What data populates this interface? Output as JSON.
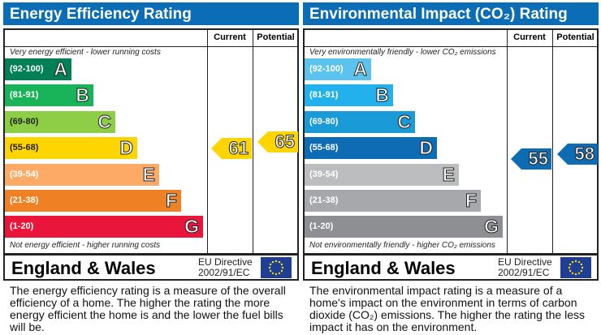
{
  "chart_data": [
    {
      "type": "bar",
      "title": "Energy Efficiency Rating",
      "columns": [
        "Current",
        "Potential"
      ],
      "top_note": "Very energy efficient - lower running costs",
      "bottom_note": "Not energy efficient - higher running costs",
      "bands": [
        {
          "range": "(92-100)",
          "letter": "A",
          "color": "#008054"
        },
        {
          "range": "(81-91)",
          "letter": "B",
          "color": "#19b459"
        },
        {
          "range": "(69-80)",
          "letter": "C",
          "color": "#8dce46"
        },
        {
          "range": "(55-68)",
          "letter": "D",
          "color": "#ffd500"
        },
        {
          "range": "(39-54)",
          "letter": "E",
          "color": "#fcaa65"
        },
        {
          "range": "(21-38)",
          "letter": "F",
          "color": "#ef8023"
        },
        {
          "range": "(1-20)",
          "letter": "G",
          "color": "#e9153b"
        }
      ],
      "current": {
        "value": "61",
        "band": "D",
        "color": "#ffd500"
      },
      "potential": {
        "value": "65",
        "band": "D",
        "color": "#ffd500"
      },
      "footer": {
        "region": "England & Wales",
        "directive_line1": "EU Directive",
        "directive_line2": "2002/91/EC"
      },
      "description": "The energy efficiency rating is a measure of the overall efficiency of a home. The higher the rating the more energy efficient the home is and the lower the fuel bills will be."
    },
    {
      "type": "bar",
      "title": "Environmental Impact (CO₂) Rating",
      "columns": [
        "Current",
        "Potential"
      ],
      "top_note": "Very environmentally friendly - lower CO₂ emissions",
      "bottom_note": "Not environmentally friendly - higher CO₂ emissions",
      "bands": [
        {
          "range": "(92-100)",
          "letter": "A",
          "color": "#5cc3ee"
        },
        {
          "range": "(81-91)",
          "letter": "B",
          "color": "#22b1ec"
        },
        {
          "range": "(69-80)",
          "letter": "C",
          "color": "#1a9ad6"
        },
        {
          "range": "(55-68)",
          "letter": "D",
          "color": "#0e6cb5"
        },
        {
          "range": "(39-54)",
          "letter": "E",
          "color": "#bbbdbf"
        },
        {
          "range": "(21-38)",
          "letter": "F",
          "color": "#a6a8ab"
        },
        {
          "range": "(1-20)",
          "letter": "G",
          "color": "#8d8f92"
        }
      ],
      "current": {
        "value": "55",
        "band": "D",
        "color": "#0e6cb5"
      },
      "potential": {
        "value": "58",
        "band": "D",
        "color": "#0e6cb5"
      },
      "footer": {
        "region": "England & Wales",
        "directive_line1": "EU Directive",
        "directive_line2": "2002/91/EC"
      },
      "description": "The environmental impact rating is a measure of a home's impact on the environment in terms of carbon dioxide (CO₂) emissions. The higher the rating the less impact it has on the environment."
    }
  ],
  "colors": {
    "header": "#0a6db5",
    "eu_flag": "#1e3f94",
    "eu_stars": "#ffdd00"
  }
}
